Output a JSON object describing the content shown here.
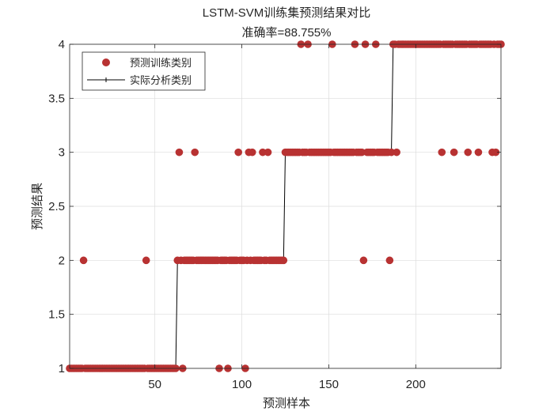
{
  "chart_data": {
    "type": "scatter",
    "title": "LSTM-SVM训练集预测结果对比",
    "subtitle": "准确率=88.755%",
    "xlabel": "预测样本",
    "ylabel": "预测结果",
    "xlim": [
      1,
      249
    ],
    "ylim": [
      1,
      4
    ],
    "xticks": [
      50,
      100,
      150,
      200
    ],
    "yticks": [
      1,
      1.5,
      2,
      2.5,
      3,
      3.5,
      4
    ],
    "grid": true,
    "legend_position": "top-left",
    "n_samples": 249,
    "actual_segments": [
      {
        "from": 1,
        "to": 62,
        "class": 1
      },
      {
        "from": 63,
        "to": 124,
        "class": 2
      },
      {
        "from": 125,
        "to": 186,
        "class": 3
      },
      {
        "from": 187,
        "to": 249,
        "class": 4
      }
    ],
    "misclassified": [
      {
        "x": 9,
        "y": 2
      },
      {
        "x": 45,
        "y": 2
      },
      {
        "x": 64,
        "y": 3
      },
      {
        "x": 66,
        "y": 1
      },
      {
        "x": 73,
        "y": 3
      },
      {
        "x": 87,
        "y": 1
      },
      {
        "x": 92,
        "y": 1
      },
      {
        "x": 98,
        "y": 3
      },
      {
        "x": 102,
        "y": 1
      },
      {
        "x": 104,
        "y": 3
      },
      {
        "x": 106,
        "y": 3
      },
      {
        "x": 112,
        "y": 3
      },
      {
        "x": 115,
        "y": 3
      },
      {
        "x": 134,
        "y": 4
      },
      {
        "x": 138,
        "y": 4
      },
      {
        "x": 152,
        "y": 4
      },
      {
        "x": 165,
        "y": 4
      },
      {
        "x": 170,
        "y": 2
      },
      {
        "x": 171,
        "y": 4
      },
      {
        "x": 177,
        "y": 4
      },
      {
        "x": 185,
        "y": 2
      },
      {
        "x": 189,
        "y": 3
      },
      {
        "x": 215,
        "y": 3
      },
      {
        "x": 222,
        "y": 3
      },
      {
        "x": 230,
        "y": 3
      },
      {
        "x": 236,
        "y": 3
      },
      {
        "x": 244,
        "y": 3
      },
      {
        "x": 246,
        "y": 3
      }
    ],
    "series": [
      {
        "name": "预测训练类别",
        "marker": "circle",
        "color": "#b83232"
      },
      {
        "name": "实际分析类别",
        "marker": "plus-line",
        "color": "#000000"
      }
    ]
  }
}
